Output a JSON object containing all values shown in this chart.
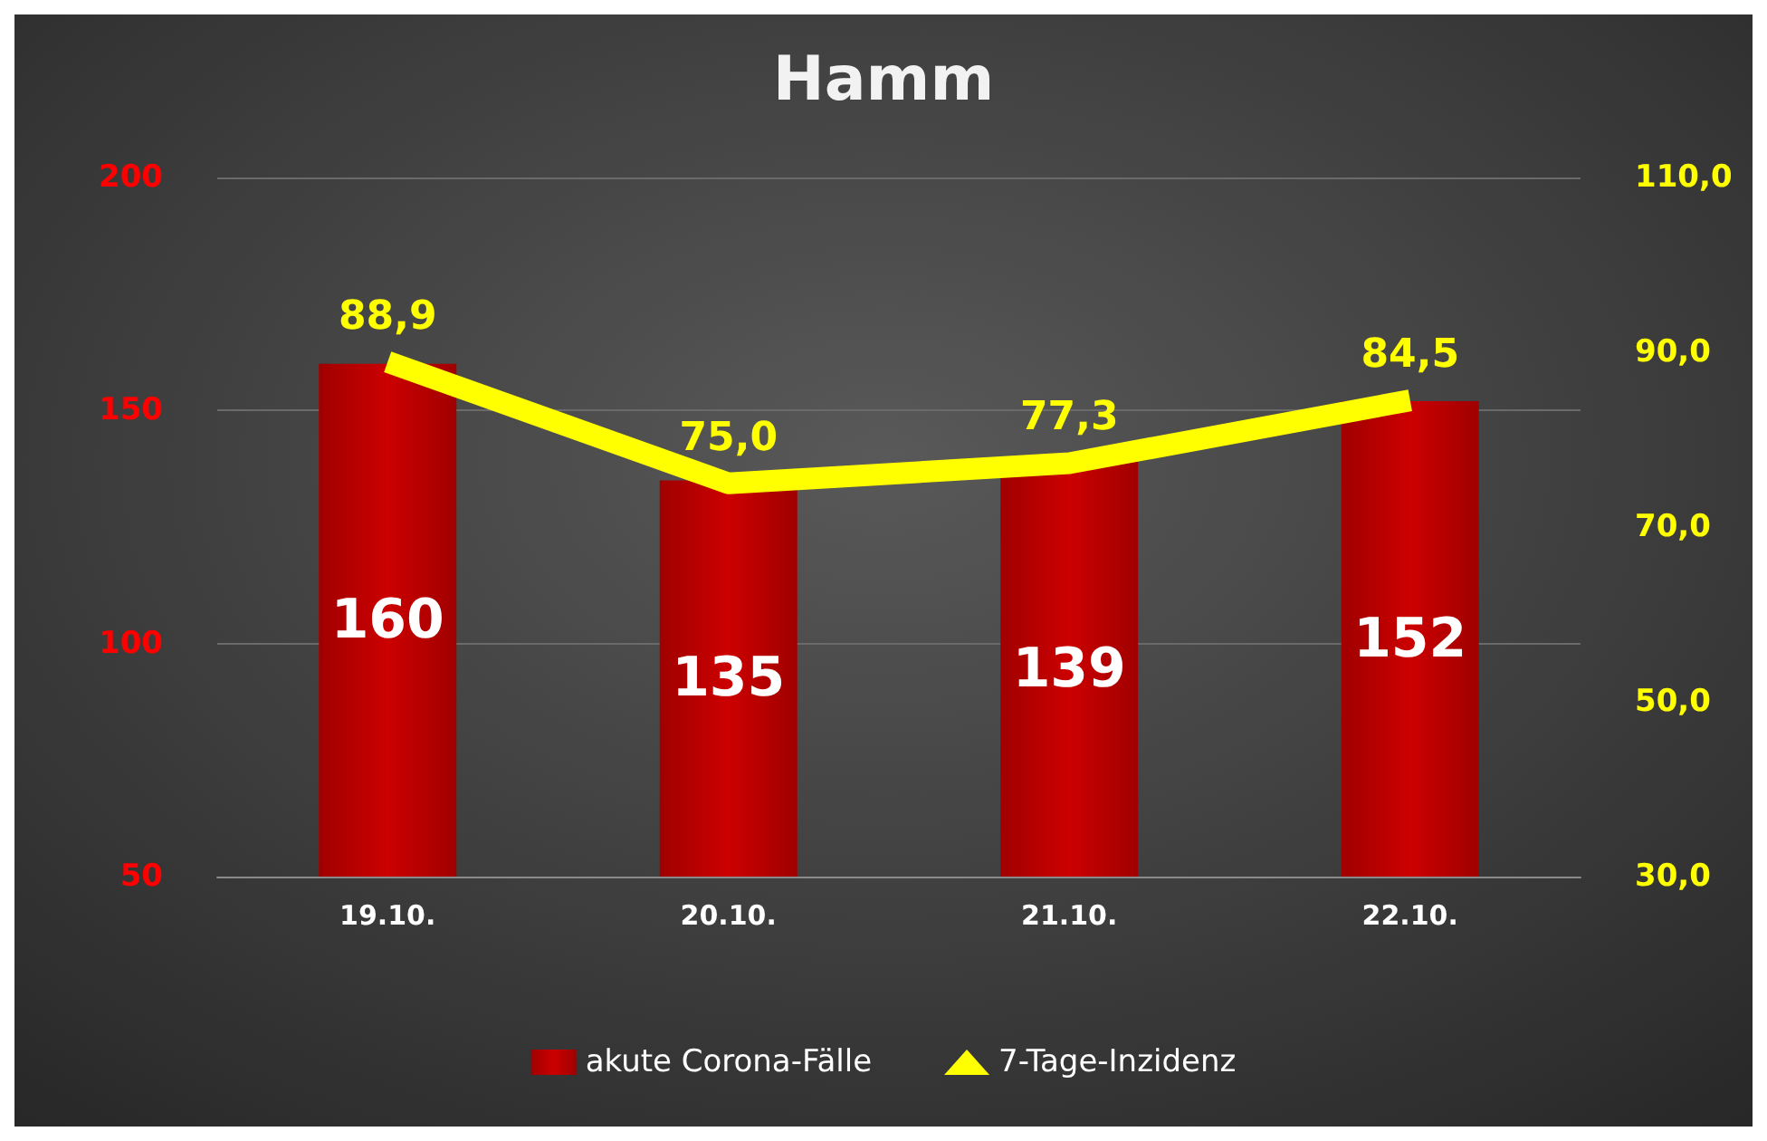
{
  "chart_data": {
    "type": "bar",
    "title": "Hamm",
    "categories": [
      "19.10.",
      "20.10.",
      "21.10.",
      "22.10."
    ],
    "series": [
      {
        "name": "akute Corona-Fälle",
        "color": "#cc0000",
        "values": [
          160,
          135,
          139,
          152
        ],
        "value_labels": [
          "160",
          "135",
          "139",
          "152"
        ]
      },
      {
        "name": "7-Tage-Inzidenz",
        "type": "line",
        "axis": "y2",
        "color": "#ffff00",
        "values": [
          88.9,
          75.0,
          77.3,
          84.5
        ],
        "value_labels": [
          "88,9",
          "75,0",
          "77,3",
          "84,5"
        ]
      }
    ],
    "ylim": [
      50,
      200
    ],
    "yticks": [
      50,
      100,
      150,
      200
    ],
    "y2lim": [
      30,
      110
    ],
    "y2ticks": [
      {
        "value": 30,
        "label": "30,0"
      },
      {
        "value": 50,
        "label": "50,0"
      },
      {
        "value": 70,
        "label": "70,0"
      },
      {
        "value": 90,
        "label": "90,0"
      },
      {
        "value": 110,
        "label": "110,0"
      }
    ],
    "grid": "y",
    "legend": "bottom"
  }
}
